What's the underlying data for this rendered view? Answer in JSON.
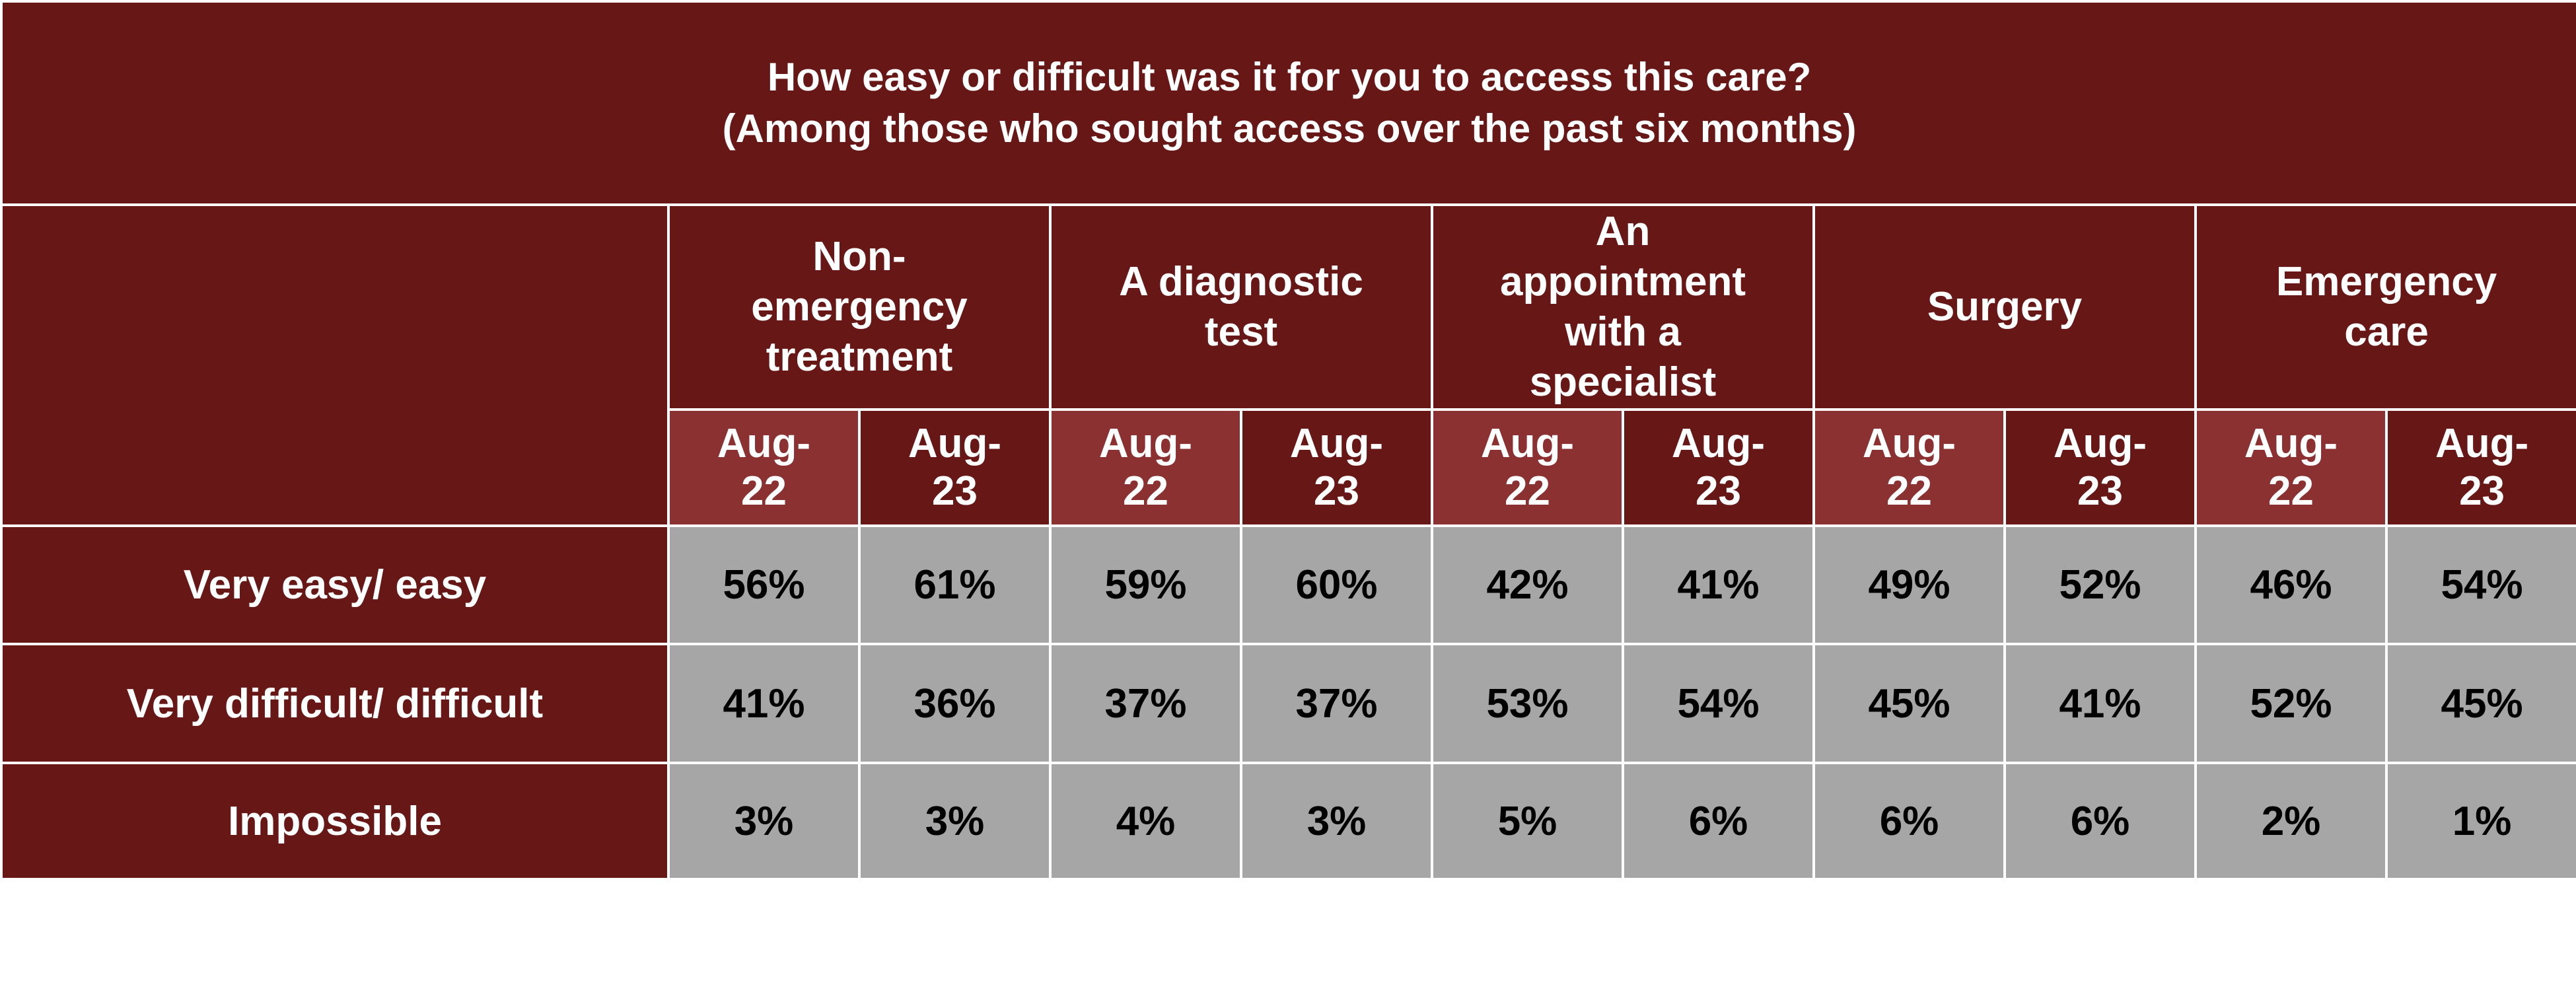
{
  "chart_data": {
    "type": "table",
    "title": "How easy or difficult was it for you to access this care?",
    "subtitle": "(Among those who sought access over the past six months)",
    "categories": [
      "Non-emergency treatment",
      "A diagnostic test",
      "An appointment with a specialist",
      "Surgery",
      "Emergency care"
    ],
    "periods": [
      "Aug-22",
      "Aug-23"
    ],
    "rows": [
      {
        "label": "Very easy/ easy",
        "values": [
          "56%",
          "61%",
          "59%",
          "60%",
          "42%",
          "41%",
          "49%",
          "52%",
          "46%",
          "54%"
        ]
      },
      {
        "label": "Very difficult/ difficult",
        "values": [
          "41%",
          "36%",
          "37%",
          "37%",
          "53%",
          "54%",
          "45%",
          "41%",
          "52%",
          "45%"
        ]
      },
      {
        "label": "Impossible",
        "values": [
          "3%",
          "3%",
          "4%",
          "3%",
          "5%",
          "6%",
          "6%",
          "6%",
          "2%",
          "1%"
        ]
      }
    ],
    "colors": {
      "header_dark": "#661716",
      "header_light": "#8b3132",
      "cell_gray": "#a6a6a6",
      "header_text": "#ffffff",
      "cell_text": "#000000"
    }
  }
}
